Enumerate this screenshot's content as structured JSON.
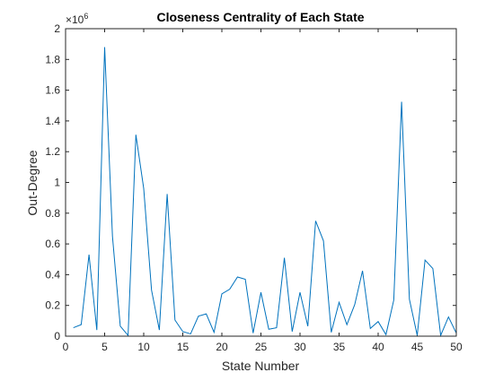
{
  "chart_data": {
    "type": "line",
    "title": "Closeness Centrality of Each State",
    "xlabel": "State Number",
    "ylabel": "Out-Degree",
    "y_multiplier_base": "×10",
    "y_multiplier_exp": "6",
    "xlim": [
      0,
      50
    ],
    "ylim": [
      0,
      2000000
    ],
    "grid": false,
    "x_ticks": [
      0,
      5,
      10,
      15,
      20,
      25,
      30,
      35,
      40,
      45,
      50
    ],
    "x_tick_labels": [
      "0",
      "5",
      "10",
      "15",
      "20",
      "25",
      "30",
      "35",
      "40",
      "45",
      "50"
    ],
    "y_ticks": [
      0,
      200000,
      400000,
      600000,
      800000,
      1000000,
      1200000,
      1400000,
      1600000,
      1800000,
      2000000
    ],
    "y_tick_labels": [
      "0",
      "0.2",
      "0.4",
      "0.6",
      "0.8",
      "1",
      "1.2",
      "1.4",
      "1.6",
      "1.8",
      "2"
    ],
    "line_color": "#0072BD",
    "series": [
      {
        "x": [
          1,
          2,
          3,
          4,
          5,
          6,
          7,
          8,
          9,
          10,
          11,
          12,
          13,
          14,
          15,
          16,
          17,
          18,
          19,
          20,
          21,
          22,
          23,
          24,
          25,
          26,
          27,
          28,
          29,
          30,
          31,
          32,
          33,
          34,
          35,
          36,
          37,
          38,
          39,
          40,
          41,
          42,
          43,
          44,
          45,
          46,
          47,
          48,
          49,
          50
        ],
        "values": [
          55000,
          75000,
          530000,
          40000,
          1880000,
          650000,
          65000,
          5000,
          1310000,
          960000,
          300000,
          40000,
          925000,
          105000,
          30000,
          15000,
          130000,
          145000,
          25000,
          275000,
          305000,
          385000,
          370000,
          20000,
          285000,
          45000,
          55000,
          510000,
          30000,
          285000,
          65000,
          750000,
          620000,
          25000,
          220000,
          75000,
          205000,
          425000,
          50000,
          95000,
          10000,
          235000,
          1525000,
          240000,
          5000,
          495000,
          440000,
          5000,
          125000,
          20000
        ]
      }
    ]
  }
}
